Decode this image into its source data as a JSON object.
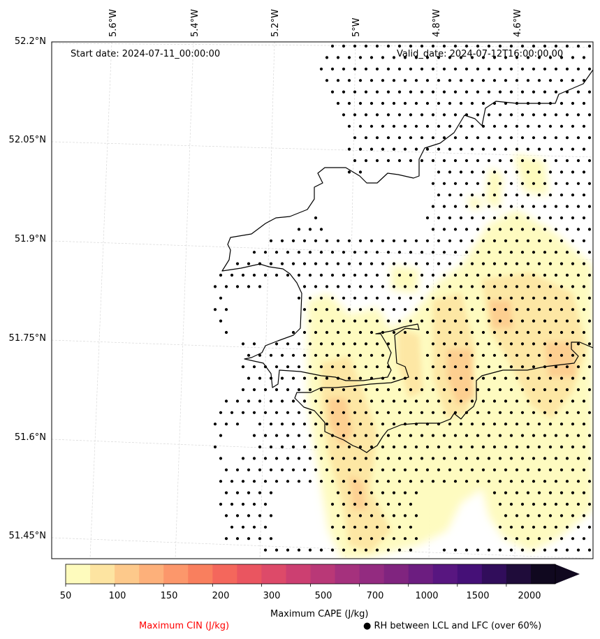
{
  "map": {
    "start_label": "Start date: 2024-07-11_00:00:00",
    "valid_label": "Valid_date: 2024-07-12T16:00:00.00",
    "lat_labels": [
      "52.2°N",
      "52.05°N",
      "51.9°N",
      "51.75°N",
      "51.6°N",
      "51.45°N"
    ],
    "lon_labels": [
      "5.6°W",
      "5.4°W",
      "5.2°W",
      "5°W",
      "4.8°W",
      "4.6°W"
    ]
  },
  "colorbar": {
    "ticks": [
      "50",
      "100",
      "150",
      "200",
      "300",
      "500",
      "700",
      "1000",
      "1500",
      "2000"
    ],
    "colors": [
      "#fefbbd",
      "#fde4a1",
      "#fdc98b",
      "#fdb07a",
      "#fc976b",
      "#f97f5e",
      "#f4675c",
      "#ea5560",
      "#dd4a69",
      "#cc3f71",
      "#b93877",
      "#a5317d",
      "#932b80",
      "#80247f",
      "#6c1d80",
      "#581680",
      "#451077",
      "#310d5b",
      "#1f0c3a",
      "#10081f"
    ],
    "label": "Maximum CAPE (J/kg)"
  },
  "legend": {
    "cin_label": "Maximum CIN (J/kg)",
    "cin_color": "#ff0000",
    "rh_label": "● RH between LCL and LFC (over 60%)"
  }
}
